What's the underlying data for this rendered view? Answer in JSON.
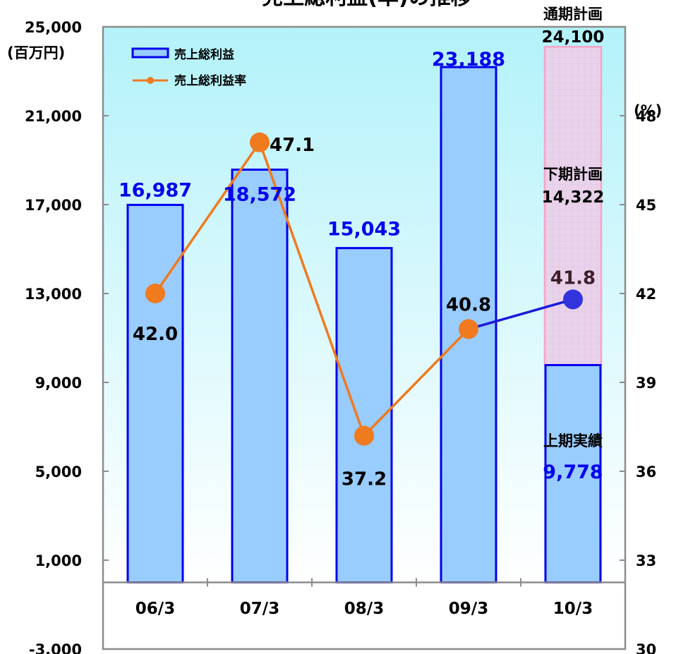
{
  "chart_data": {
    "type": "bar",
    "title": "売上総利益(率)の推移",
    "categories": [
      "06/3",
      "07/3",
      "08/3",
      "09/3",
      "10/3"
    ],
    "y_left": {
      "unit_label": "(百万円)",
      "ylim": [
        -3000,
        25000
      ],
      "ticks": [
        {
          "value": 25000,
          "label": "25,000"
        },
        {
          "value": 21000,
          "label": "21,000"
        },
        {
          "value": 17000,
          "label": "17,000"
        },
        {
          "value": 13000,
          "label": "13,000"
        },
        {
          "value": 9000,
          "label": "9,000"
        },
        {
          "value": 5000,
          "label": "5,000"
        },
        {
          "value": 1000,
          "label": "1,000"
        },
        {
          "value": -3000,
          "label": "-3,000"
        }
      ]
    },
    "y_right": {
      "unit_label": "(%)",
      "ylim": [
        30,
        51
      ],
      "ticks": [
        {
          "value": 48,
          "label": "48"
        },
        {
          "value": 45,
          "label": "45"
        },
        {
          "value": 42,
          "label": "42"
        },
        {
          "value": 39,
          "label": "39"
        },
        {
          "value": 36,
          "label": "36"
        },
        {
          "value": 33,
          "label": "33"
        },
        {
          "value": 30,
          "label": "30"
        }
      ]
    },
    "series": [
      {
        "name": "売上総利益",
        "kind": "bar",
        "axis": "left",
        "values": [
          16987,
          18572,
          15043,
          23188,
          9778
        ],
        "labels": [
          "16,987",
          "18,572",
          "15,043",
          "23,188",
          "9,778"
        ]
      },
      {
        "name": "売上総利益率",
        "kind": "line",
        "axis": "right",
        "values": [
          42.0,
          47.1,
          37.2,
          40.8,
          41.8
        ],
        "labels": [
          "42.0",
          "47.1",
          "37.2",
          "40.8",
          "41.8"
        ]
      }
    ],
    "plan": {
      "full_year_label": "通期計画",
      "full_year_value": 24100,
      "full_year_value_label": "24,100",
      "second_half_label": "下期計画",
      "second_half_value": 14322,
      "second_half_value_label": "14,322",
      "first_half_label": "上期実績"
    },
    "legend_position": "top-left",
    "colors": {
      "plot_bg_top": "#b3f2fa",
      "plot_bg_bottom": "#ffffff",
      "bar_fill": "#99ccff",
      "bar_stroke": "#0000ee",
      "line_color": "#f07a1e",
      "marker_color": "#f07a1e",
      "forecast_line": "#1a1add",
      "forecast_marker": "#3333dd",
      "plan_fill": "#ead2ea",
      "plan_stroke": "#f7a3c6",
      "bar_label_color": "#0000ee",
      "text_color": "#000000"
    }
  }
}
